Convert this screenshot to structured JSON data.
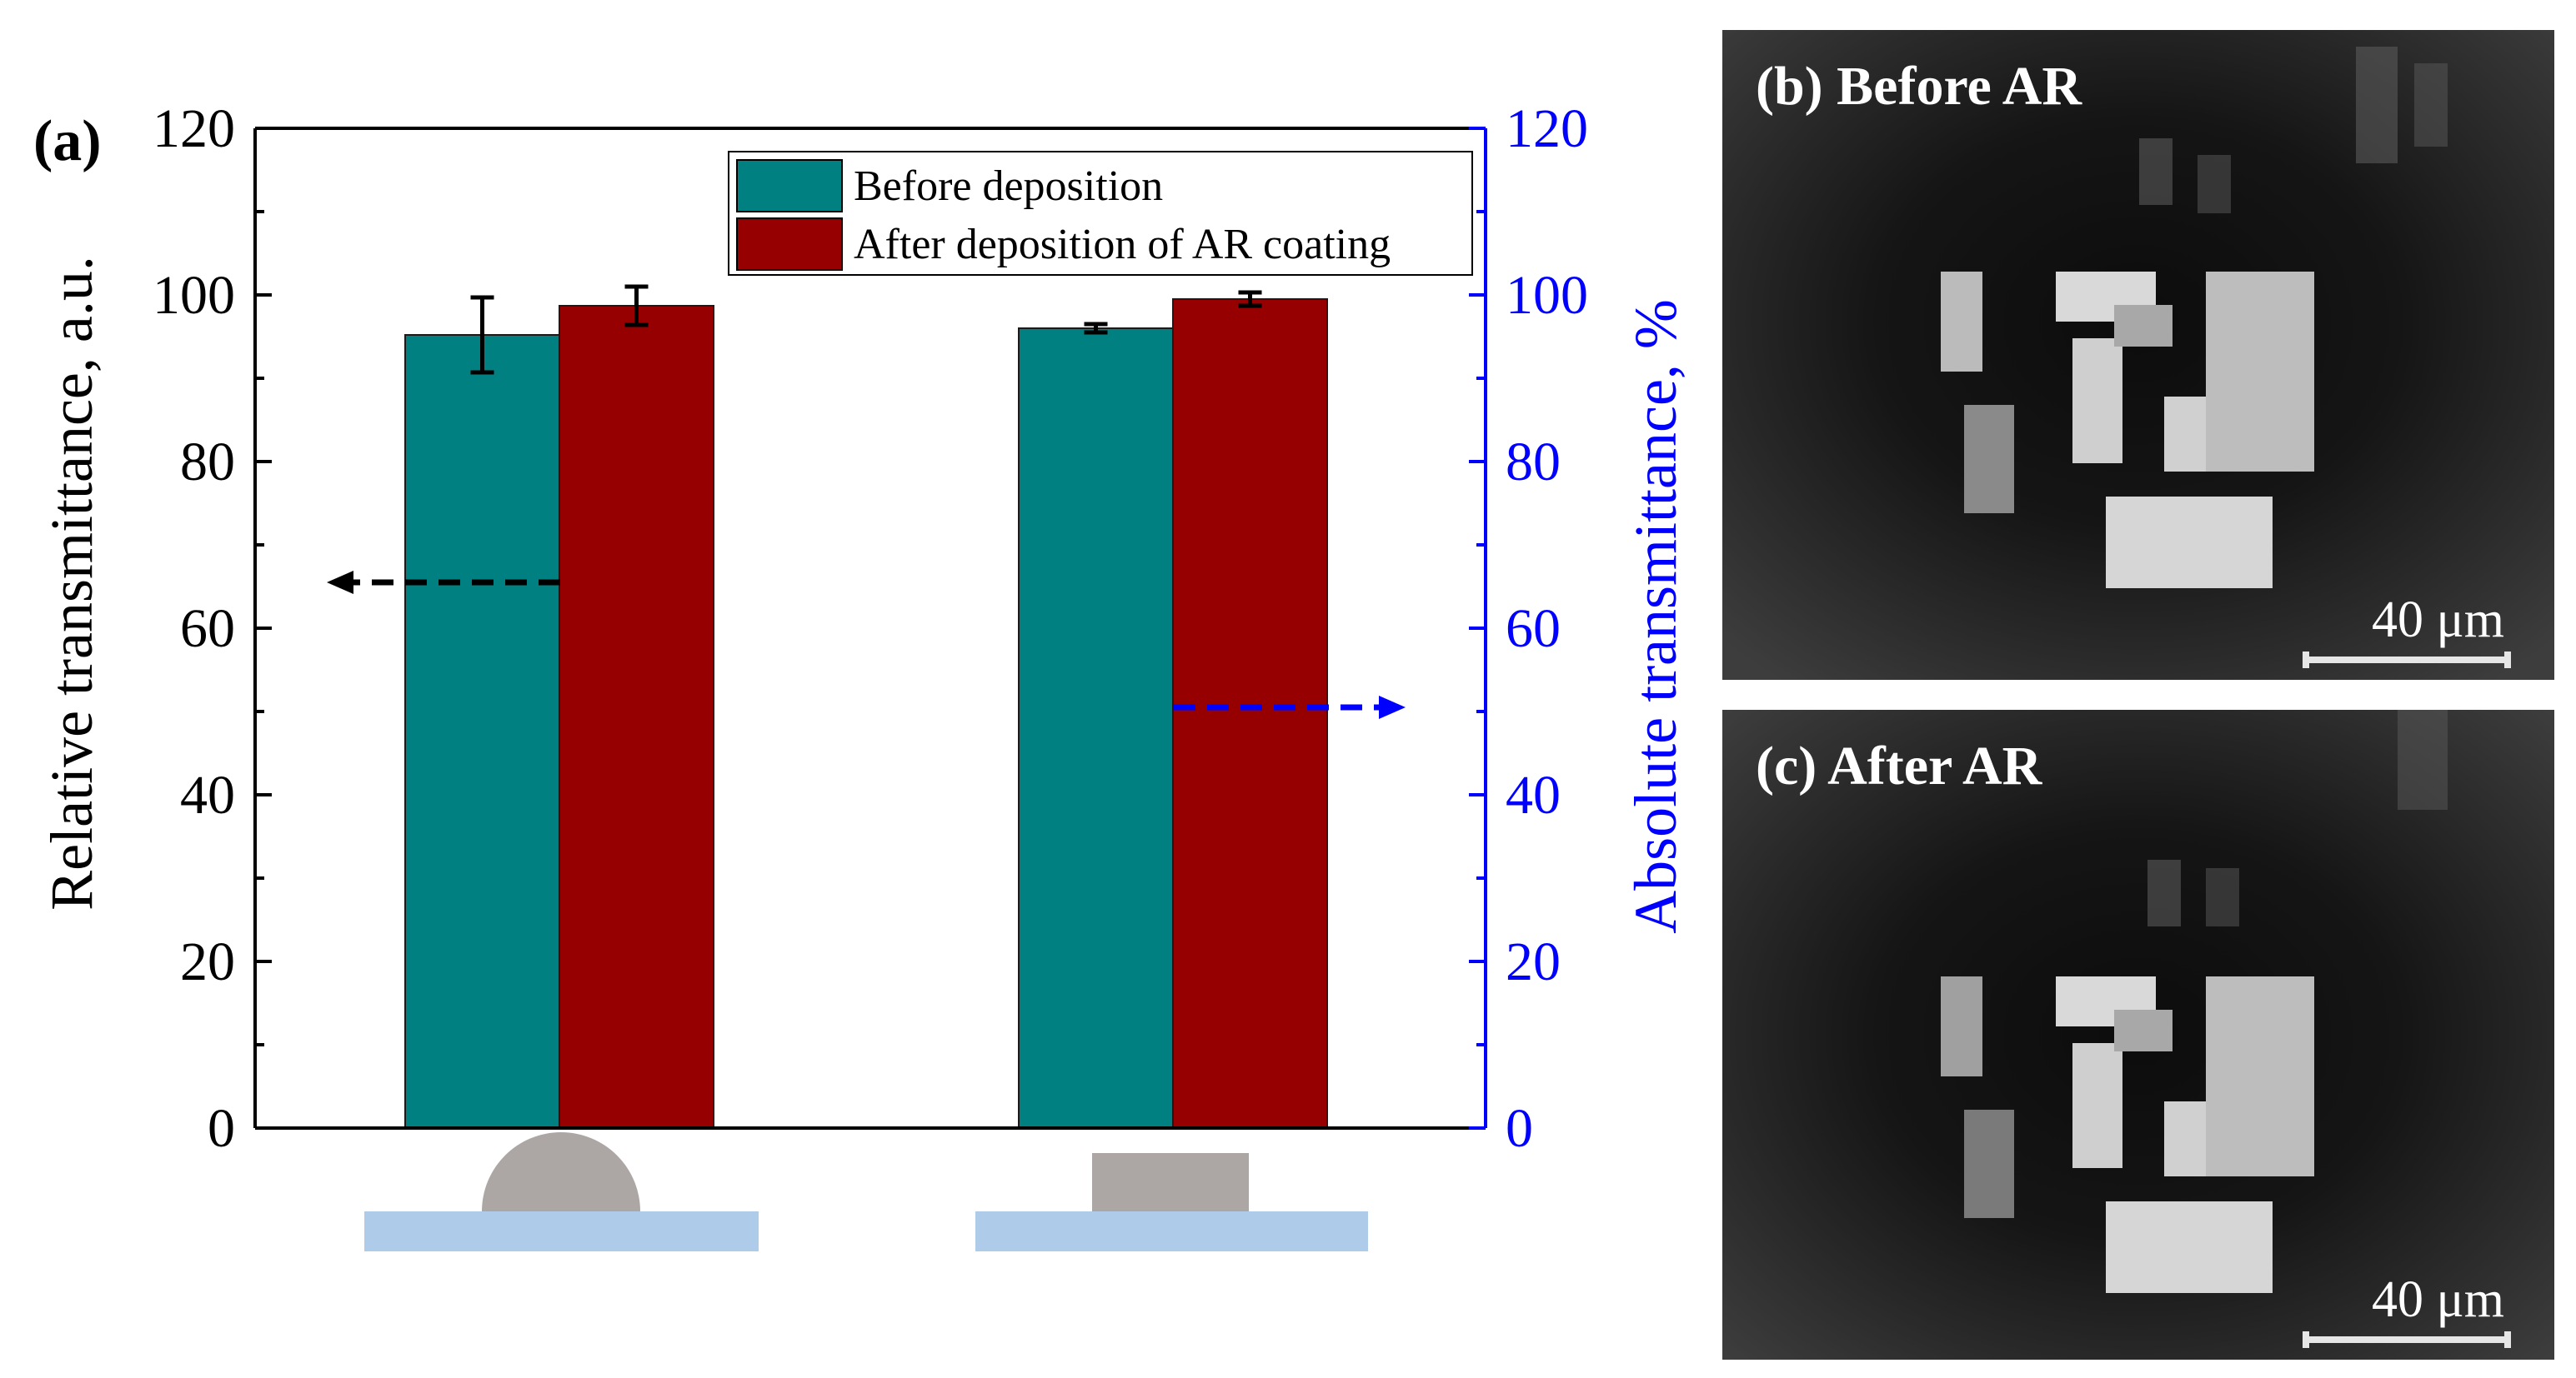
{
  "panel_label": "(a)",
  "chart_data": {
    "type": "bar",
    "categories": [
      "Lens-shaped structure",
      "Rectangular structure"
    ],
    "series": [
      {
        "name": "Before deposition",
        "color": "#008080",
        "values": [
          95.2,
          96.0
        ],
        "errors": [
          4.5,
          0.5
        ]
      },
      {
        "name": "After deposition of AR coating",
        "color": "#960000",
        "values": [
          98.7,
          99.5
        ],
        "errors": [
          2.3,
          0.8
        ]
      }
    ],
    "ylabel": "Relative transmittance, a.u.",
    "ylabel_right": "Absolute transmittance, %",
    "ylim": [
      0,
      120
    ],
    "ylim_right": [
      0,
      120
    ],
    "yticks": [
      "0",
      "20",
      "40",
      "60",
      "80",
      "100",
      "120"
    ],
    "yticks_right": [
      "0",
      "20",
      "40",
      "60",
      "80",
      "100",
      "120"
    ],
    "axis_colors": {
      "left": "#000000",
      "right": "#0000ff"
    },
    "legend_position": "top-right",
    "annotations": [
      {
        "type": "arrow",
        "direction": "left",
        "color": "#000000",
        "y": 65.5,
        "note": "points to left axis"
      },
      {
        "type": "arrow",
        "direction": "right",
        "color": "#0000ff",
        "y": 50.5,
        "note": "points to right axis"
      }
    ],
    "grid": false
  },
  "micrographs": [
    {
      "title": "(b) Before AR",
      "scale": "40 μm"
    },
    {
      "title": "(c) After AR",
      "scale": "40 μm"
    }
  ],
  "colors": {
    "substrate": "#aecbe9",
    "structure": "#aca6a4"
  }
}
